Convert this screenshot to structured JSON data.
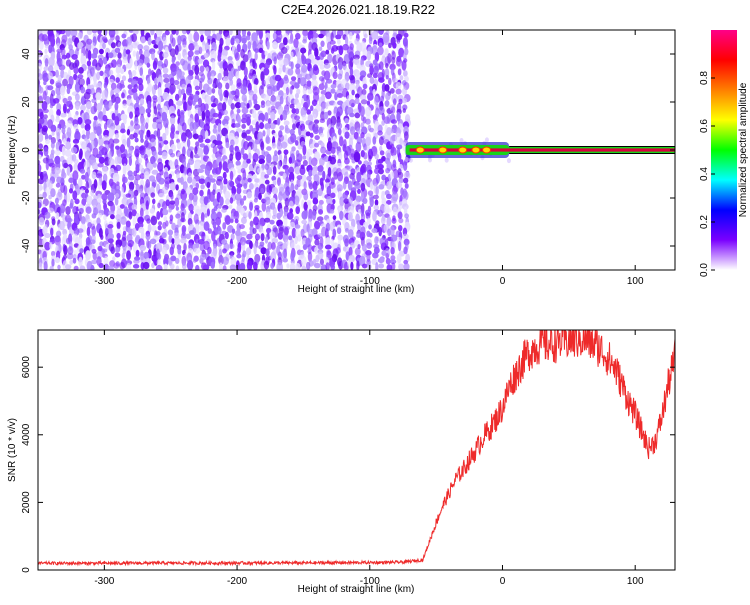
{
  "page_title": "C2E4.2026.021.18.19.R22",
  "colors": {
    "snr_line": "#ee2a2a",
    "background_speckle": "#7a1fff",
    "signal_core": "#d8003c",
    "signal_halo": "#19d319",
    "signal_outer": "#2a2ac8"
  },
  "chart_data": [
    {
      "type": "heatmap",
      "title": "C2E4.2026.021.18.19.R22",
      "xlabel": "Height of straight line (km)",
      "ylabel": "Frequency (Hz)",
      "xlim": [
        -350,
        130
      ],
      "ylim": [
        -50,
        50
      ],
      "x_ticks": [
        -300,
        -200,
        -100,
        0,
        100
      ],
      "y_ticks": [
        -40,
        -20,
        0,
        20,
        40
      ],
      "noise_region_x": [
        -350,
        -73
      ],
      "signal_region_x": [
        -73,
        130
      ],
      "signal_frequency": 0,
      "colorbar": {
        "label": "Normalized spectral amplitude",
        "range": [
          0,
          1
        ],
        "ticks": [
          "0.0",
          "0.2",
          "0.4",
          "0.6",
          "0.8"
        ],
        "colormap": [
          "#ffffff",
          "#7a00ff",
          "#0000ff",
          "#00ffff",
          "#00ff00",
          "#ffff00",
          "#ff7f00",
          "#ff0000",
          "#ff0088"
        ]
      }
    },
    {
      "type": "line",
      "xlabel": "Height of straight line (km)",
      "ylabel": "SNR (10 * v/v)",
      "xlim": [
        -350,
        130
      ],
      "ylim": [
        0,
        7100
      ],
      "x_ticks": [
        -300,
        -200,
        -100,
        0,
        100
      ],
      "y_ticks": [
        0,
        2000,
        4000,
        6000
      ],
      "series": [
        {
          "x": [
            -350,
            -300,
            -250,
            -200,
            -150,
            -100,
            -75,
            -60,
            -55,
            -50,
            -45,
            -40,
            -35,
            -30,
            -25,
            -20,
            -15,
            -10,
            -5,
            0,
            5,
            10,
            15,
            20,
            25,
            30,
            35,
            40,
            45,
            50,
            55,
            60,
            65,
            70,
            75,
            80,
            85,
            90,
            95,
            100,
            105,
            110,
            115,
            120,
            125,
            130
          ],
          "values": [
            200,
            200,
            205,
            205,
            210,
            220,
            230,
            300,
            850,
            1400,
            1900,
            2300,
            2700,
            2950,
            3250,
            3550,
            3900,
            4150,
            4450,
            4800,
            5400,
            5800,
            6150,
            6450,
            6600,
            6700,
            6680,
            6720,
            6780,
            6800,
            6820,
            6840,
            6780,
            6650,
            6500,
            6250,
            5950,
            5500,
            5000,
            4600,
            4100,
            3600,
            3800,
            4500,
            5500,
            6300
          ]
        }
      ]
    }
  ]
}
